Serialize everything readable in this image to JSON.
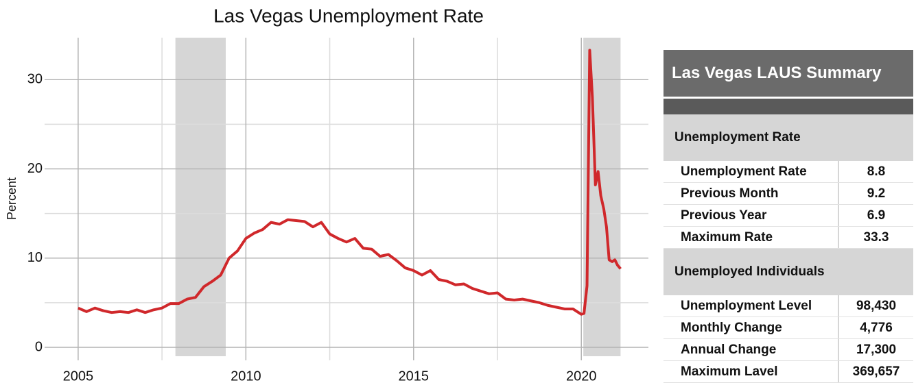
{
  "chart_data": {
    "type": "line",
    "title": "Las Vegas Unemployment Rate",
    "y_label": "Percent",
    "x": [
      2005.0,
      2005.25,
      2005.5,
      2005.75,
      2006.0,
      2006.25,
      2006.5,
      2006.75,
      2007.0,
      2007.25,
      2007.5,
      2007.75,
      2008.0,
      2008.25,
      2008.5,
      2008.75,
      2009.0,
      2009.25,
      2009.5,
      2009.75,
      2010.0,
      2010.25,
      2010.5,
      2010.75,
      2011.0,
      2011.25,
      2011.5,
      2011.75,
      2012.0,
      2012.25,
      2012.5,
      2012.75,
      2013.0,
      2013.25,
      2013.5,
      2013.75,
      2014.0,
      2014.25,
      2014.5,
      2014.75,
      2015.0,
      2015.25,
      2015.5,
      2015.75,
      2016.0,
      2016.25,
      2016.5,
      2016.75,
      2017.0,
      2017.25,
      2017.5,
      2017.75,
      2018.0,
      2018.25,
      2018.5,
      2018.75,
      2019.0,
      2019.25,
      2019.5,
      2019.75,
      2020.0,
      2020.08,
      2020.17,
      2020.25,
      2020.33,
      2020.42,
      2020.5,
      2020.58,
      2020.67,
      2020.75,
      2020.83,
      2020.92,
      2021.0,
      2021.08,
      2021.17
    ],
    "values": [
      4.4,
      4.0,
      4.4,
      4.1,
      3.9,
      4.0,
      3.9,
      4.2,
      3.9,
      4.2,
      4.4,
      4.9,
      4.9,
      5.4,
      5.6,
      6.8,
      7.4,
      8.1,
      10.0,
      10.8,
      12.2,
      12.8,
      13.2,
      14.0,
      13.8,
      14.3,
      14.2,
      14.1,
      13.5,
      14.0,
      12.7,
      12.2,
      11.8,
      12.2,
      11.1,
      11.0,
      10.2,
      10.4,
      9.7,
      8.9,
      8.6,
      8.1,
      8.6,
      7.6,
      7.4,
      7.0,
      7.1,
      6.6,
      6.3,
      6.0,
      6.1,
      5.4,
      5.3,
      5.4,
      5.2,
      5.0,
      4.7,
      4.5,
      4.3,
      4.3,
      3.7,
      3.8,
      6.9,
      33.3,
      28.0,
      18.2,
      19.7,
      17.0,
      15.5,
      13.5,
      9.8,
      9.6,
      9.8,
      9.2,
      8.8
    ],
    "color": "#d0282b",
    "shaded_regions": [
      [
        2007.9,
        2009.4
      ],
      [
        2020.06,
        2021.17
      ]
    ],
    "xlim": [
      2004,
      2022
    ],
    "xticks": [
      2005,
      2010,
      2015,
      2020
    ],
    "minor_xticks": [
      2007.5,
      2012.5,
      2017.5
    ],
    "ylim": [
      -1,
      34.7
    ],
    "yticks": [
      0,
      10,
      20,
      30
    ],
    "minor_yticks": [
      5,
      15,
      25
    ],
    "grid": true
  },
  "summary": {
    "title": "Las Vegas LAUS Summary",
    "sections": [
      {
        "title": "Unemployment Rate",
        "rows": [
          [
            "Unemployment Rate",
            "8.8"
          ],
          [
            "Previous Month",
            "9.2"
          ],
          [
            "Previous Year",
            "6.9"
          ],
          [
            "Maximum Rate",
            "33.3"
          ]
        ]
      },
      {
        "title": "Unemployed Individuals",
        "rows": [
          [
            "Unemployment Level",
            "98,430"
          ],
          [
            "Monthly Change",
            "4,776"
          ],
          [
            "Annual Change",
            "17,300"
          ],
          [
            "Maximum Lavel",
            "369,657"
          ]
        ]
      }
    ]
  }
}
